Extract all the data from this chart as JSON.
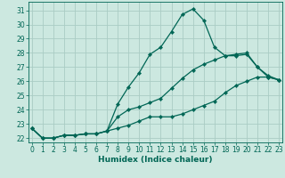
{
  "xlabel": "Humidex (Indice chaleur)",
  "background_color": "#cce8e0",
  "grid_color": "#aaccC4",
  "line_color": "#006655",
  "x": [
    0,
    1,
    2,
    3,
    4,
    5,
    6,
    7,
    8,
    9,
    10,
    11,
    12,
    13,
    14,
    15,
    16,
    17,
    18,
    19,
    20,
    21,
    22,
    23
  ],
  "y_max": [
    22.7,
    22.0,
    22.0,
    22.2,
    22.2,
    22.3,
    22.3,
    22.5,
    24.4,
    25.6,
    26.6,
    27.9,
    28.4,
    29.5,
    30.7,
    31.1,
    30.3,
    28.4,
    27.8,
    27.9,
    28.0,
    27.0,
    26.4,
    26.1
  ],
  "y_mean": [
    22.7,
    22.0,
    22.0,
    22.2,
    22.2,
    22.3,
    22.3,
    22.5,
    23.5,
    24.0,
    24.2,
    24.5,
    24.8,
    25.5,
    26.2,
    26.8,
    27.2,
    27.5,
    27.8,
    27.8,
    27.9,
    27.0,
    26.3,
    26.1
  ],
  "y_min": [
    22.7,
    22.0,
    22.0,
    22.2,
    22.2,
    22.3,
    22.3,
    22.5,
    22.7,
    22.9,
    23.2,
    23.5,
    23.5,
    23.5,
    23.7,
    24.0,
    24.3,
    24.6,
    25.2,
    25.7,
    26.0,
    26.3,
    26.3,
    26.1
  ],
  "ylim": [
    21.7,
    31.6
  ],
  "xlim": [
    -0.3,
    23.3
  ],
  "yticks": [
    22,
    23,
    24,
    25,
    26,
    27,
    28,
    29,
    30,
    31
  ],
  "xticks": [
    0,
    1,
    2,
    3,
    4,
    5,
    6,
    7,
    8,
    9,
    10,
    11,
    12,
    13,
    14,
    15,
    16,
    17,
    18,
    19,
    20,
    21,
    22,
    23
  ],
  "marker_size": 2.2,
  "line_width": 0.9,
  "tick_fontsize": 5.5,
  "xlabel_fontsize": 6.5
}
